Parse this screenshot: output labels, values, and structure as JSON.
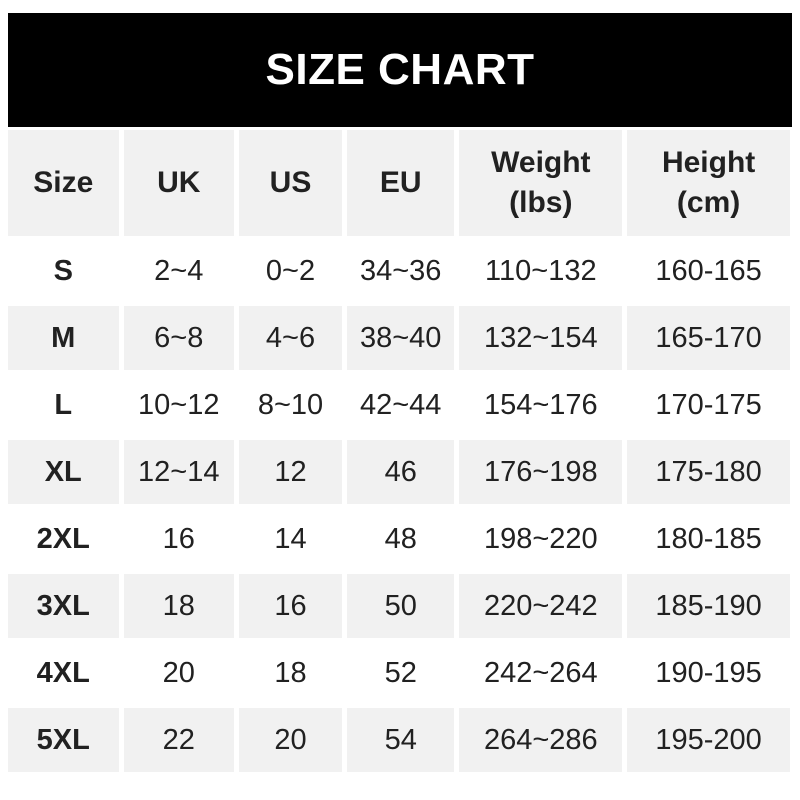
{
  "banner": {
    "title": "SIZE CHART"
  },
  "colors": {
    "banner_bg": "#000000",
    "banner_text": "#ffffff",
    "cell_gray": "#f1f1f1",
    "text": "#212121",
    "page_bg": "#ffffff"
  },
  "chart_data": {
    "type": "table",
    "title": "SIZE CHART",
    "columns": [
      {
        "key": "size",
        "label": "Size",
        "sub": ""
      },
      {
        "key": "uk",
        "label": "UK",
        "sub": ""
      },
      {
        "key": "us",
        "label": "US",
        "sub": ""
      },
      {
        "key": "eu",
        "label": "EU",
        "sub": ""
      },
      {
        "key": "weight",
        "label": "Weight",
        "sub": "(lbs)"
      },
      {
        "key": "height",
        "label": "Height",
        "sub": "(cm)"
      }
    ],
    "rows": [
      [
        "S",
        "2~4",
        "0~2",
        "34~36",
        "110~132",
        "160-165"
      ],
      [
        "M",
        "6~8",
        "4~6",
        "38~40",
        "132~154",
        "165-170"
      ],
      [
        "L",
        "10~12",
        "8~10",
        "42~44",
        "154~176",
        "170-175"
      ],
      [
        "XL",
        "12~14",
        "12",
        "46",
        "176~198",
        "175-180"
      ],
      [
        "2XL",
        "16",
        "14",
        "48",
        "198~220",
        "180-185"
      ],
      [
        "3XL",
        "18",
        "16",
        "50",
        "220~242",
        "185-190"
      ],
      [
        "4XL",
        "20",
        "18",
        "52",
        "242~264",
        "190-195"
      ],
      [
        "5XL",
        "22",
        "20",
        "54",
        "264~286",
        "195-200"
      ]
    ],
    "layout": {
      "row_striping": "alternating white / light gray starting with gray header",
      "grid": "white gutters between cells, no borders"
    }
  }
}
